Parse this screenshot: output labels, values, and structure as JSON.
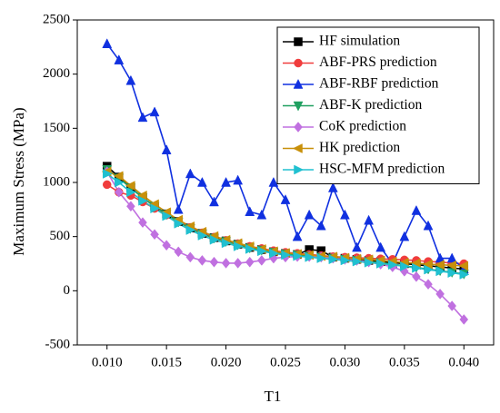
{
  "chart_data": {
    "type": "line",
    "xlabel": "T1",
    "ylabel": "Maximum Stress (MPa)",
    "xlim": [
      0.0075,
      0.0425
    ],
    "ylim": [
      -500,
      2500
    ],
    "xticks": [
      {
        "value": 0.01,
        "label": "0.010"
      },
      {
        "value": 0.015,
        "label": "0.015"
      },
      {
        "value": 0.02,
        "label": "0.020"
      },
      {
        "value": 0.025,
        "label": "0.025"
      },
      {
        "value": 0.03,
        "label": "0.030"
      },
      {
        "value": 0.035,
        "label": "0.035"
      },
      {
        "value": 0.04,
        "label": "0.040"
      }
    ],
    "yticks": [
      -500,
      0,
      500,
      1000,
      1500,
      2000,
      2500
    ],
    "legend": "upper right",
    "x": [
      0.01,
      0.011,
      0.012,
      0.013,
      0.014,
      0.015,
      0.016,
      0.017,
      0.018,
      0.019,
      0.02,
      0.021,
      0.022,
      0.023,
      0.024,
      0.025,
      0.026,
      0.027,
      0.028,
      0.029,
      0.03,
      0.031,
      0.032,
      0.033,
      0.034,
      0.035,
      0.036,
      0.037,
      0.038,
      0.039,
      0.04
    ],
    "series": [
      {
        "name": "HF simulation",
        "color": "#000000",
        "marker": "square",
        "values": [
          1150,
          1050,
          950,
          860,
          780,
          710,
          640,
          580,
          530,
          490,
          460,
          430,
          400,
          380,
          360,
          345,
          335,
          380,
          370,
          310,
          300,
          290,
          280,
          270,
          260,
          250,
          240,
          230,
          220,
          210,
          200
        ]
      },
      {
        "name": "ABF-PRS prediction",
        "color": "#f03c3c",
        "marker": "circle",
        "values": [
          980,
          910,
          880,
          820,
          760,
          700,
          640,
          585,
          535,
          495,
          465,
          435,
          410,
          390,
          370,
          355,
          345,
          335,
          325,
          315,
          310,
          305,
          300,
          295,
          290,
          285,
          280,
          270,
          265,
          255,
          250
        ]
      },
      {
        "name": "ABF-RBF prediction",
        "color": "#1030e0",
        "marker": "triangle-up",
        "values": [
          2280,
          2130,
          1940,
          1600,
          1650,
          1300,
          750,
          1080,
          1000,
          820,
          1000,
          1020,
          730,
          700,
          1000,
          840,
          500,
          700,
          600,
          950,
          700,
          400,
          650,
          400,
          250,
          500,
          740,
          600,
          300,
          300,
          200
        ]
      },
      {
        "name": "ABF-K prediction",
        "color": "#20a060",
        "marker": "triangle-down",
        "values": [
          1120,
          1040,
          950,
          860,
          780,
          705,
          635,
          575,
          525,
          485,
          455,
          425,
          395,
          375,
          355,
          340,
          330,
          320,
          310,
          300,
          290,
          280,
          270,
          260,
          245,
          230,
          215,
          200,
          185,
          170,
          155
        ]
      },
      {
        "name": "CoK prediction",
        "color": "#c070e0",
        "marker": "diamond",
        "values": [
          1100,
          910,
          780,
          630,
          520,
          420,
          360,
          310,
          280,
          265,
          255,
          255,
          265,
          280,
          300,
          310,
          315,
          315,
          310,
          300,
          290,
          280,
          265,
          245,
          220,
          180,
          130,
          60,
          -30,
          -140,
          -265
        ]
      },
      {
        "name": "HK prediction",
        "color": "#c8900a",
        "marker": "triangle-left",
        "values": [
          1100,
          1060,
          970,
          880,
          800,
          725,
          655,
          595,
          545,
          505,
          470,
          440,
          410,
          385,
          365,
          350,
          340,
          330,
          320,
          315,
          305,
          295,
          290,
          280,
          270,
          260,
          255,
          245,
          240,
          235,
          230
        ]
      },
      {
        "name": "HSC-MFM prediction",
        "color": "#20c0d0",
        "marker": "triangle-right",
        "values": [
          1080,
          1000,
          910,
          830,
          760,
          690,
          620,
          560,
          510,
          470,
          440,
          410,
          385,
          365,
          345,
          330,
          320,
          310,
          300,
          290,
          280,
          270,
          260,
          250,
          240,
          225,
          210,
          195,
          180,
          165,
          150
        ]
      }
    ]
  }
}
